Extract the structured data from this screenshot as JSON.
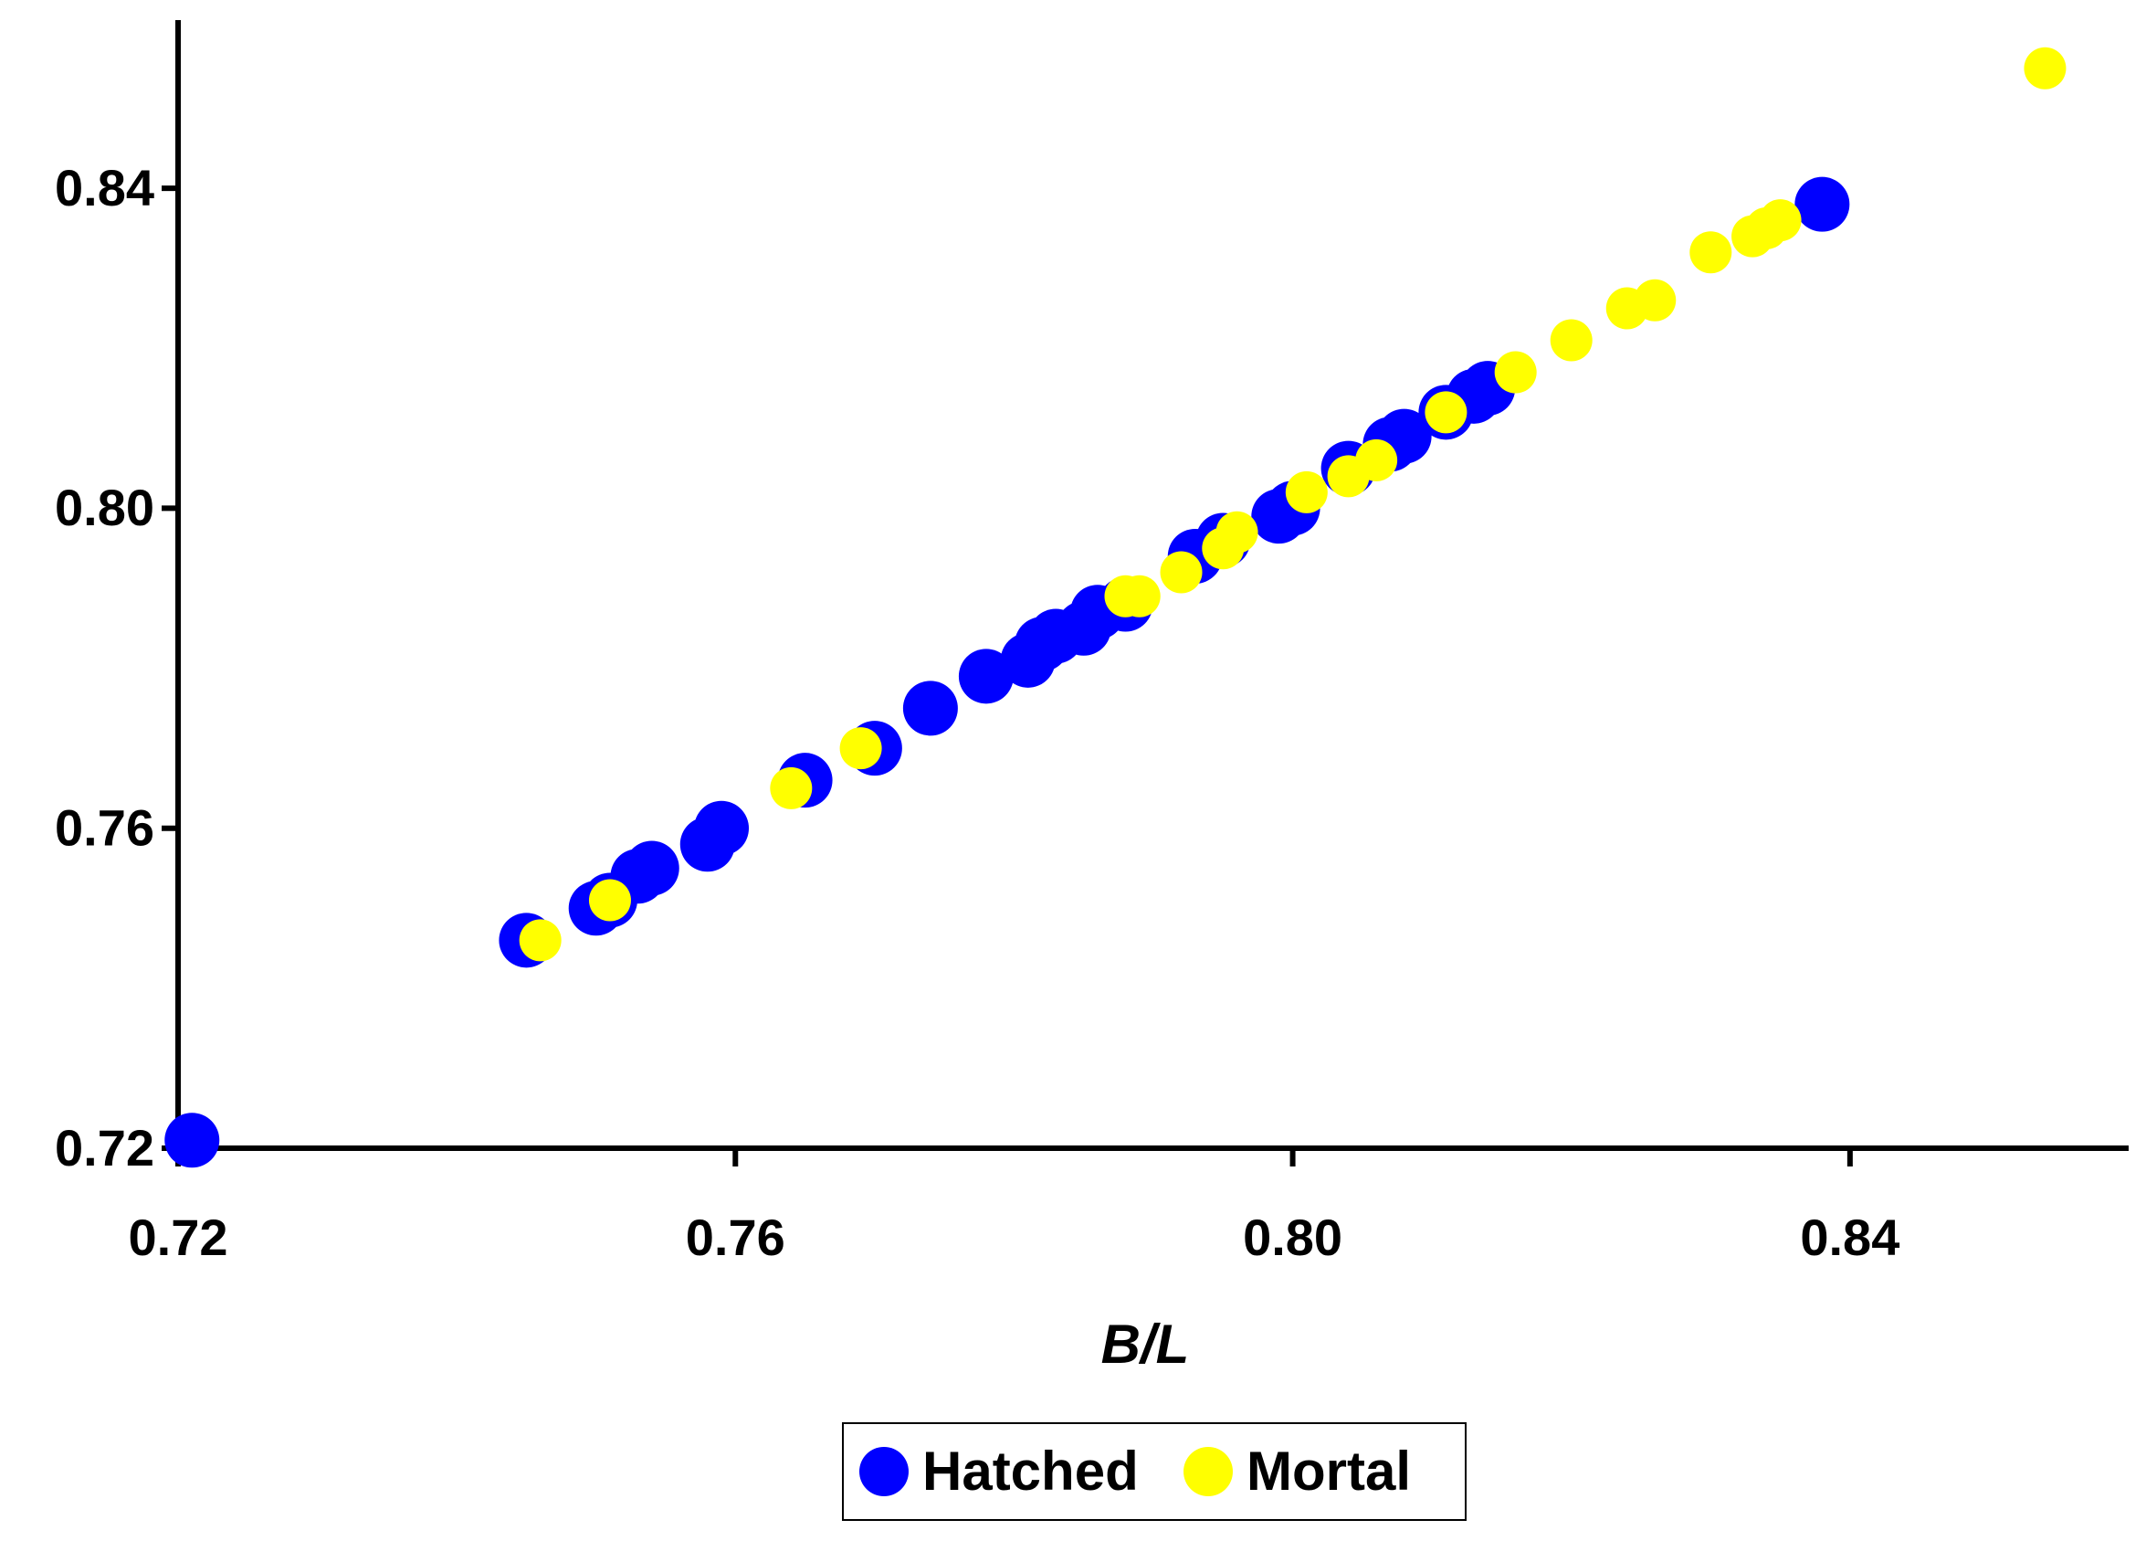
{
  "chart_data": {
    "type": "scatter",
    "x_label": "B/L",
    "xlim": [
      0.72,
      0.86
    ],
    "ylim": [
      0.72,
      0.86
    ],
    "xticks": [
      0.72,
      0.76,
      {
        "value": 0.8,
        "label": "0.80"
      },
      0.84
    ],
    "yticks": [
      0.72,
      0.76,
      {
        "value": 0.8,
        "label": "0.80"
      },
      0.84
    ],
    "series": [
      {
        "name": "Hatched",
        "color": "#0000ff",
        "x": [
          0.721,
          0.745,
          0.75,
          0.751,
          0.753,
          0.754,
          0.758,
          0.759,
          0.765,
          0.77,
          0.774,
          0.778,
          0.781,
          0.782,
          0.783,
          0.785,
          0.786,
          0.788,
          0.793,
          0.795,
          0.799,
          0.8,
          0.804,
          0.807,
          0.808,
          0.811,
          0.813,
          0.814,
          0.838
        ],
        "values": [
          0.721,
          0.746,
          0.75,
          0.751,
          0.754,
          0.755,
          0.758,
          0.76,
          0.766,
          0.77,
          0.775,
          0.779,
          0.781,
          0.783,
          0.784,
          0.785,
          0.787,
          0.788,
          0.794,
          0.796,
          0.799,
          0.8,
          0.805,
          0.808,
          0.809,
          0.812,
          0.814,
          0.815,
          0.838
        ]
      },
      {
        "name": "Mortal",
        "color": "#ffff00",
        "x": [
          0.746,
          0.751,
          0.764,
          0.769,
          0.788,
          0.789,
          0.792,
          0.795,
          0.796,
          0.801,
          0.804,
          0.806,
          0.811,
          0.816,
          0.82,
          0.824,
          0.826,
          0.83,
          0.833,
          0.834,
          0.835,
          0.854
        ],
        "values": [
          0.746,
          0.751,
          0.765,
          0.77,
          0.789,
          0.789,
          0.792,
          0.795,
          0.797,
          0.802,
          0.804,
          0.806,
          0.812,
          0.817,
          0.821,
          0.825,
          0.826,
          0.832,
          0.834,
          0.835,
          0.836,
          0.855
        ]
      }
    ]
  }
}
